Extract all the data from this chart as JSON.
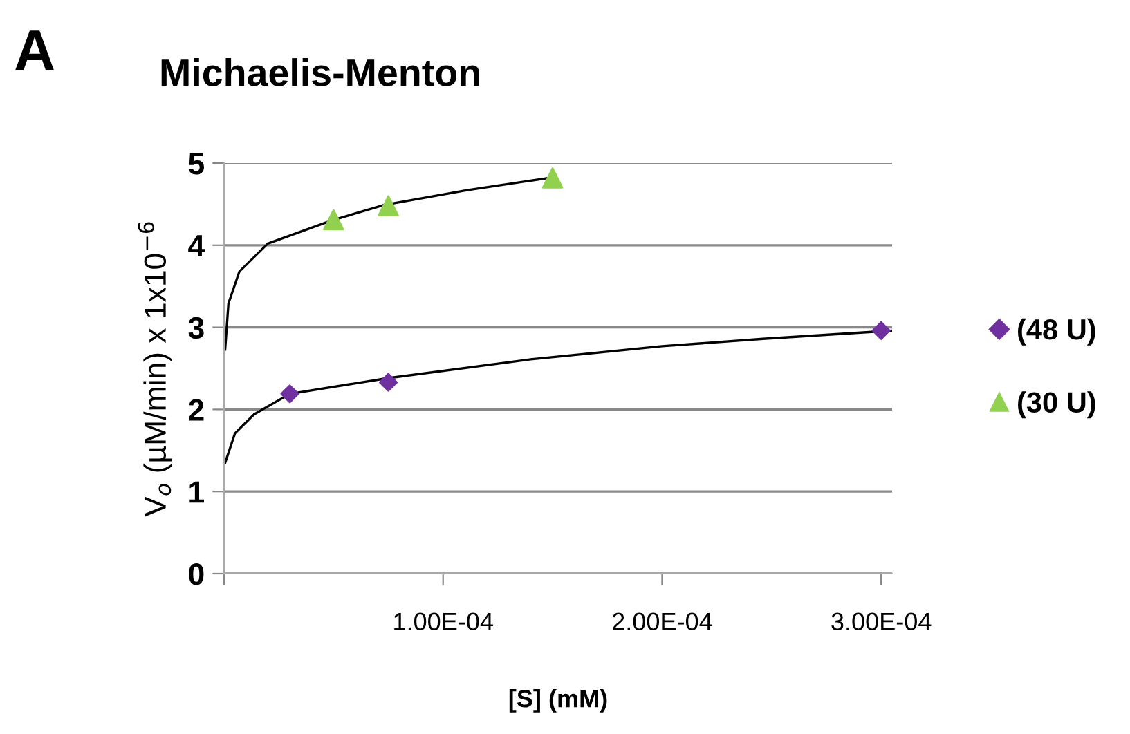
{
  "chart_data": {
    "type": "scatter",
    "title": "Michaelis-Menton",
    "xlabel": "[S] (mM)",
    "ylabel": "V$_{o}$ (µM/min) x 1x10$^{−6}$",
    "annotations": [
      "A"
    ],
    "xlim": [
      0,
      0.000305
    ],
    "xticks": [
      {
        "value": 0,
        "label": null
      },
      {
        "value": 0.0001,
        "label": "1.00E-04"
      },
      {
        "value": 0.0002,
        "label": "2.00E-04"
      },
      {
        "value": 0.0003,
        "label": "3.00E-04"
      }
    ],
    "ylim": [
      0,
      5
    ],
    "yticks": [
      0,
      1,
      2,
      3,
      4,
      5
    ],
    "grid": "y",
    "legend": "right",
    "series": [
      {
        "name": "(48 U)",
        "color": "#7030a0",
        "marker": "diamond",
        "x": [
          3e-05,
          7.5e-05,
          0.0003
        ],
        "values": [
          2.19,
          2.33,
          2.96
        ]
      },
      {
        "name": "(30 U)",
        "color": "#92d050",
        "marker": "triangle",
        "x": [
          5e-05,
          7.5e-05,
          0.00015
        ],
        "values": [
          4.31,
          4.48,
          4.82
        ]
      },
      {
        "type": "line",
        "color": "#000000",
        "marker": "none",
        "x": [
          5e-07,
          5e-06,
          1.37e-05,
          3e-05,
          7.45e-05,
          0.00014,
          0.0002,
          0.000246,
          0.000305
        ],
        "values": [
          1.35,
          1.71,
          1.94,
          2.19,
          2.38,
          2.61,
          2.77,
          2.86,
          2.96
        ]
      },
      {
        "type": "line",
        "color": "#000000",
        "marker": "none",
        "x": [
          5e-07,
          2e-06,
          7e-06,
          2e-05,
          4.9e-05,
          7.3e-05,
          0.000111,
          0.000151
        ],
        "values": [
          2.73,
          3.29,
          3.68,
          4.02,
          4.3,
          4.49,
          4.67,
          4.83
        ]
      }
    ]
  }
}
